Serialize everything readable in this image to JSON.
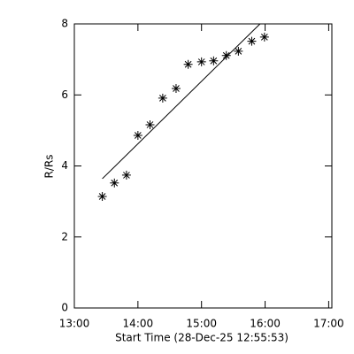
{
  "chart_data": {
    "type": "scatter",
    "xlabel": "Start Time (28-Dec-25 12:55:53)",
    "ylabel": "R/Rs",
    "xlim": [
      13,
      17.05
    ],
    "xticks": [
      {
        "value": 13,
        "label": "13:00"
      },
      {
        "value": 14,
        "label": "14:00"
      },
      {
        "value": 15,
        "label": "15:00"
      },
      {
        "value": 16,
        "label": "16:00"
      },
      {
        "value": 17,
        "label": "17:00"
      }
    ],
    "ylim": [
      0,
      8
    ],
    "yticks": [
      0,
      2,
      4,
      6,
      8
    ],
    "series": [
      {
        "marker": "asterisk",
        "color": "#000000",
        "x": [
          13.44,
          13.63,
          13.82,
          14.0,
          14.19,
          14.39,
          14.6,
          14.79,
          15.0,
          15.19,
          15.39,
          15.58,
          15.79,
          15.99
        ],
        "values": [
          3.14,
          3.52,
          3.74,
          4.86,
          5.16,
          5.91,
          6.18,
          6.86,
          6.93,
          6.96,
          7.11,
          7.23,
          7.51,
          7.63
        ]
      },
      {
        "marker": "line",
        "color": "#000000",
        "x": [
          13.44,
          15.92
        ],
        "values": [
          3.64,
          8.0
        ]
      }
    ]
  }
}
